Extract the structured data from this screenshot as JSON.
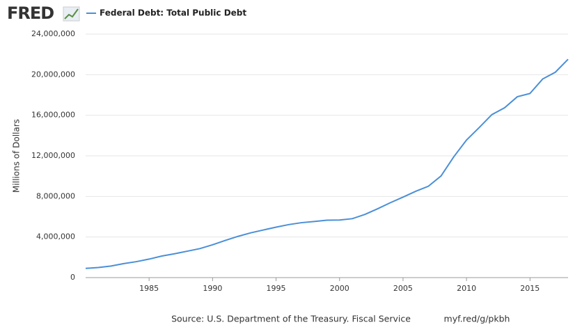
{
  "logo": "FRED",
  "source": "Source: U.S. Department of the Treasury. Fiscal Service",
  "link": "myf.red/g/pkbh",
  "chart_data": {
    "type": "line",
    "y_label": "Millions of Dollars",
    "x": [
      1980,
      1981,
      1982,
      1983,
      1984,
      1985,
      1986,
      1987,
      1988,
      1989,
      1990,
      1991,
      1992,
      1993,
      1994,
      1995,
      1996,
      1997,
      1998,
      1999,
      2000,
      2001,
      2002,
      2003,
      2004,
      2005,
      2006,
      2007,
      2008,
      2009,
      2010,
      2011,
      2012,
      2013,
      2014,
      2015,
      2016,
      2017,
      2018
    ],
    "series": [
      {
        "name": "Federal Debt: Total Public Debt",
        "color": "#4a8fd8",
        "values": [
          907701,
          997855,
          1142034,
          1377210,
          1572266,
          1823103,
          2125303,
          2350277,
          2602338,
          2857431,
          3233313,
          3665303,
          4064621,
          4411489,
          4692750,
          4973983,
          5224811,
          5413146,
          5526193,
          5656271,
          5674178,
          5807463,
          6228236,
          6783231,
          7379053,
          7932710,
          8506974,
          9007653,
          10024725,
          11909829,
          13561623,
          14790340,
          16066241,
          16738184,
          17824071,
          18150618,
          19573445,
          20244900,
          21516058
        ]
      }
    ],
    "xlim": [
      1980,
      2018
    ],
    "xticks": [
      1985,
      1990,
      1995,
      2000,
      2005,
      2010,
      2015
    ],
    "ylim": [
      0,
      24000000
    ],
    "yticks": [
      0,
      {
        "value": 4000000,
        "label": "4,000,000"
      },
      {
        "value": 8000000,
        "label": "8,000,000"
      },
      {
        "value": 12000000,
        "label": "12,000,000"
      },
      {
        "value": 16000000,
        "label": "16,000,000"
      },
      {
        "value": 20000000,
        "label": "20,000,000"
      },
      {
        "value": 24000000,
        "label": "24,000,000"
      }
    ],
    "grid": true
  }
}
